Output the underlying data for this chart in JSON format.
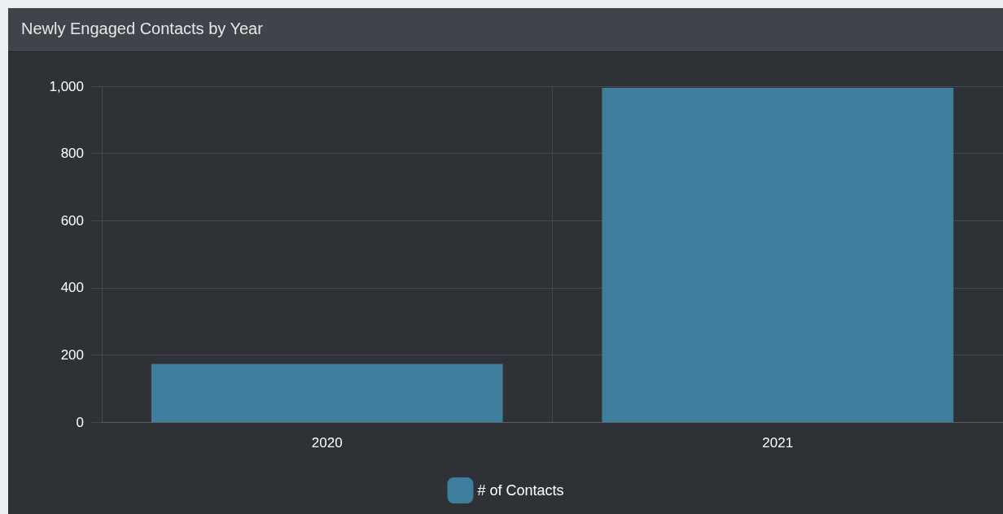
{
  "chart_data": {
    "type": "bar",
    "title": "Newly Engaged Contacts by Year",
    "categories": [
      "2020",
      "2021"
    ],
    "series": [
      {
        "name": "# of Contacts",
        "color": "#3e7d9c",
        "values": [
          173,
          995
        ]
      }
    ],
    "ylim": [
      0,
      1000
    ],
    "yticks": [
      0,
      200,
      400,
      600,
      800,
      {
        "value": 1000,
        "label": "1,000"
      }
    ],
    "grid": true,
    "legend": "bottom"
  }
}
